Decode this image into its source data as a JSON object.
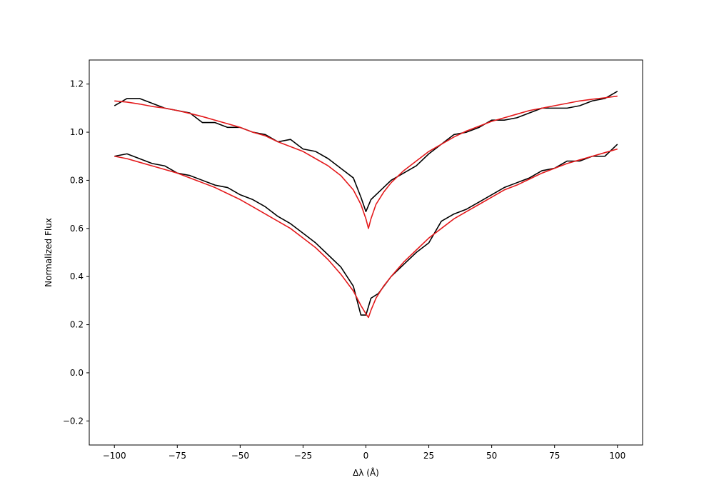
{
  "chart_data": {
    "type": "line",
    "title": "",
    "xlabel": "Δλ (Å)",
    "ylabel": "Normalized Flux",
    "xlim": [
      -110,
      110
    ],
    "ylim": [
      -0.3,
      1.3
    ],
    "xticks": [
      -100,
      -75,
      -50,
      -25,
      0,
      25,
      50,
      75,
      100
    ],
    "xtick_labels": [
      "−100",
      "−75",
      "−50",
      "−25",
      "0",
      "25",
      "50",
      "75",
      "100"
    ],
    "yticks": [
      -0.2,
      0.0,
      0.2,
      0.4,
      0.6,
      0.8,
      1.0,
      1.2
    ],
    "ytick_labels": [
      "−0.2",
      "0.0",
      "0.2",
      "0.4",
      "0.6",
      "0.8",
      "1.0",
      "1.2"
    ],
    "grid": false,
    "legend": "none",
    "series": [
      {
        "role": "observed",
        "color": "#000000",
        "x": [
          -100,
          -95,
          -90,
          -85,
          -80,
          -75,
          -70,
          -65,
          -60,
          -55,
          -50,
          -45,
          -40,
          -35,
          -30,
          -25,
          -20,
          -15,
          -10,
          -5,
          -2,
          0,
          2,
          5,
          10,
          15,
          20,
          25,
          30,
          35,
          40,
          45,
          50,
          55,
          60,
          65,
          70,
          75,
          80,
          85,
          90,
          95,
          100
        ],
        "y": [
          1.11,
          1.14,
          1.14,
          1.12,
          1.1,
          1.09,
          1.08,
          1.04,
          1.04,
          1.02,
          1.02,
          1.0,
          0.99,
          0.96,
          0.97,
          0.93,
          0.92,
          0.89,
          0.85,
          0.81,
          0.73,
          0.67,
          0.72,
          0.75,
          0.8,
          0.83,
          0.86,
          0.91,
          0.95,
          0.99,
          1.0,
          1.02,
          1.05,
          1.05,
          1.06,
          1.08,
          1.1,
          1.1,
          1.1,
          1.11,
          1.13,
          1.14,
          1.17
        ]
      },
      {
        "role": "model",
        "color": "#e41a1c",
        "x": [
          -100,
          -95,
          -90,
          -85,
          -80,
          -75,
          -70,
          -65,
          -60,
          -55,
          -50,
          -45,
          -40,
          -35,
          -30,
          -25,
          -20,
          -15,
          -10,
          -5,
          -2,
          0,
          1,
          2,
          4,
          7,
          10,
          15,
          20,
          25,
          30,
          35,
          40,
          45,
          50,
          55,
          60,
          65,
          70,
          75,
          80,
          85,
          90,
          95,
          100
        ],
        "y": [
          1.13,
          1.125,
          1.117,
          1.107,
          1.1,
          1.09,
          1.078,
          1.065,
          1.05,
          1.035,
          1.02,
          1.0,
          0.985,
          0.96,
          0.94,
          0.92,
          0.89,
          0.86,
          0.82,
          0.76,
          0.7,
          0.64,
          0.6,
          0.64,
          0.7,
          0.75,
          0.79,
          0.84,
          0.88,
          0.92,
          0.95,
          0.98,
          1.005,
          1.025,
          1.045,
          1.06,
          1.075,
          1.09,
          1.1,
          1.11,
          1.12,
          1.13,
          1.137,
          1.143,
          1.15
        ]
      },
      {
        "role": "observed",
        "color": "#000000",
        "x": [
          -100,
          -95,
          -90,
          -85,
          -80,
          -75,
          -70,
          -65,
          -60,
          -55,
          -50,
          -45,
          -40,
          -35,
          -30,
          -25,
          -20,
          -15,
          -10,
          -5,
          -2,
          0,
          2,
          5,
          10,
          15,
          20,
          25,
          30,
          35,
          40,
          45,
          50,
          55,
          60,
          65,
          70,
          75,
          80,
          85,
          90,
          95,
          100
        ],
        "y": [
          0.9,
          0.91,
          0.89,
          0.87,
          0.86,
          0.83,
          0.82,
          0.8,
          0.78,
          0.77,
          0.74,
          0.72,
          0.69,
          0.65,
          0.62,
          0.58,
          0.54,
          0.49,
          0.44,
          0.36,
          0.24,
          0.24,
          0.31,
          0.33,
          0.4,
          0.45,
          0.5,
          0.54,
          0.63,
          0.66,
          0.68,
          0.71,
          0.74,
          0.77,
          0.79,
          0.81,
          0.84,
          0.85,
          0.88,
          0.88,
          0.9,
          0.9,
          0.95
        ]
      },
      {
        "role": "model",
        "color": "#e41a1c",
        "x": [
          -100,
          -95,
          -90,
          -85,
          -80,
          -75,
          -70,
          -65,
          -60,
          -55,
          -50,
          -45,
          -40,
          -35,
          -30,
          -25,
          -20,
          -15,
          -10,
          -5,
          -2,
          0,
          1,
          2,
          4,
          7,
          10,
          15,
          20,
          25,
          30,
          35,
          40,
          45,
          50,
          55,
          60,
          65,
          70,
          75,
          80,
          85,
          90,
          95,
          100
        ],
        "y": [
          0.9,
          0.89,
          0.875,
          0.86,
          0.845,
          0.83,
          0.81,
          0.79,
          0.77,
          0.745,
          0.72,
          0.69,
          0.66,
          0.63,
          0.6,
          0.56,
          0.52,
          0.47,
          0.41,
          0.34,
          0.28,
          0.245,
          0.23,
          0.26,
          0.31,
          0.36,
          0.4,
          0.46,
          0.51,
          0.56,
          0.6,
          0.64,
          0.67,
          0.7,
          0.73,
          0.76,
          0.78,
          0.805,
          0.83,
          0.85,
          0.87,
          0.885,
          0.9,
          0.915,
          0.93
        ]
      }
    ]
  }
}
